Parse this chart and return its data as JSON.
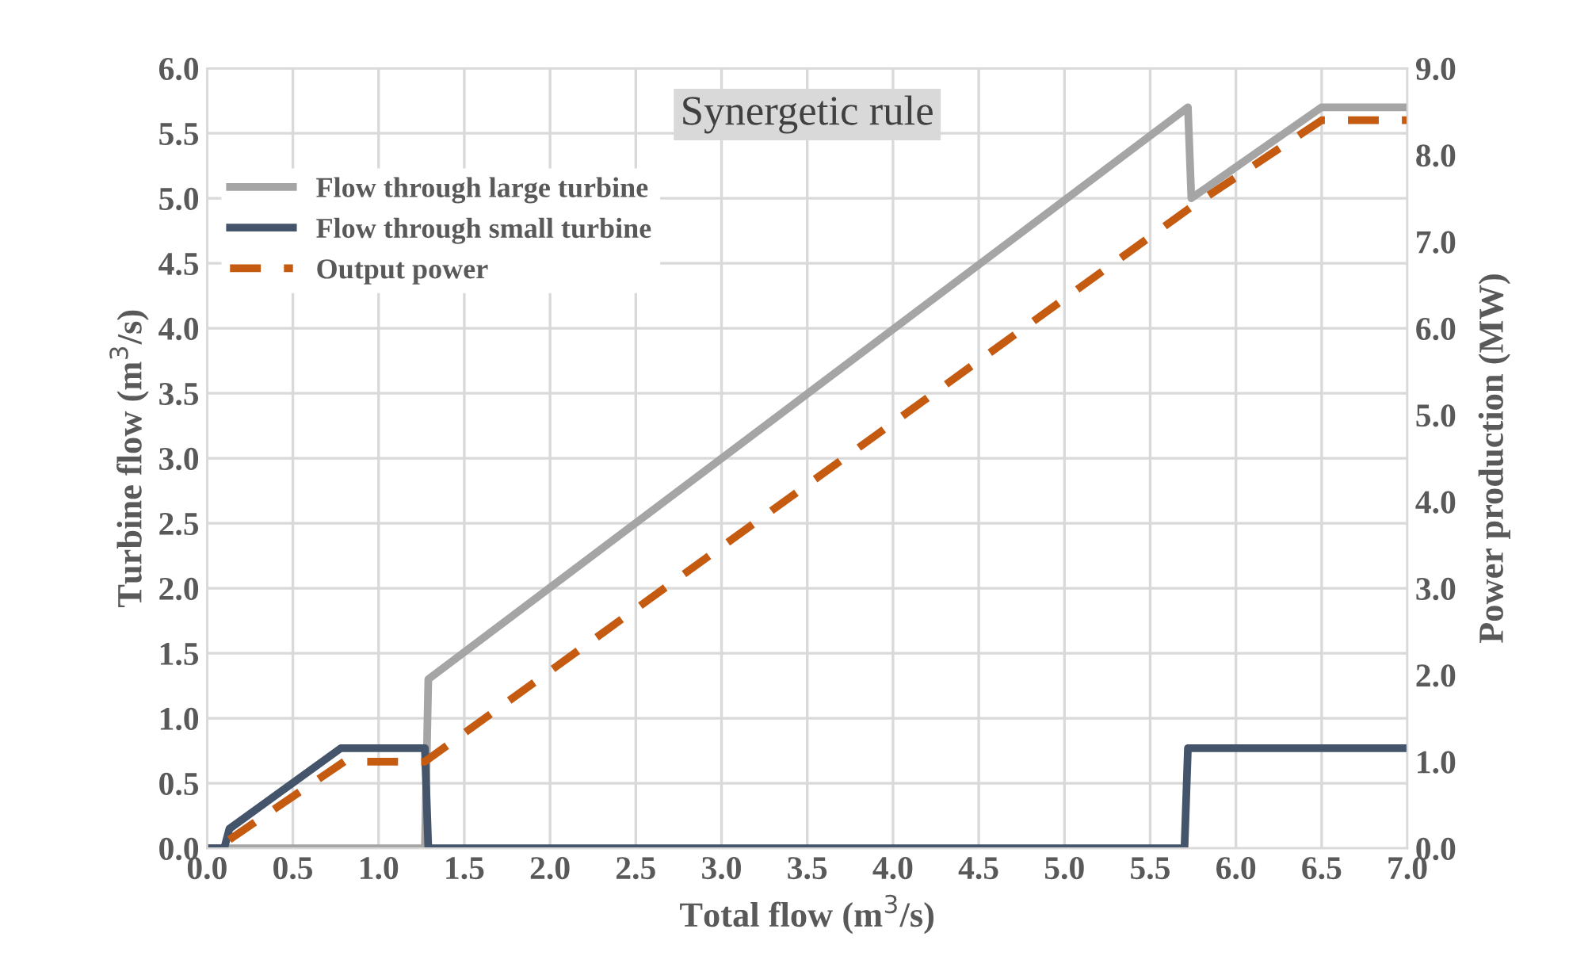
{
  "chart_data": {
    "type": "line",
    "title": "Synergetic rule",
    "xlabel": "Total flow (m$^{3}$/s)",
    "ylabel": "Turbine flow (m$^{3}$/s)",
    "y2label": "Power production (MW)",
    "xlim": [
      0,
      7
    ],
    "xticks": [
      {
        "value": 0,
        "label": "0.0"
      },
      {
        "value": 0.5,
        "label": "0.5"
      },
      {
        "value": 1,
        "label": "1.0"
      },
      {
        "value": 1.5,
        "label": "1.5"
      },
      {
        "value": 2,
        "label": "2.0"
      },
      {
        "value": 2.5,
        "label": "2.5"
      },
      {
        "value": 3,
        "label": "3.0"
      },
      {
        "value": 3.5,
        "label": "3.5"
      },
      {
        "value": 4,
        "label": "4.0"
      },
      {
        "value": 4.5,
        "label": "4.5"
      },
      {
        "value": 5,
        "label": "5.0"
      },
      {
        "value": 5.5,
        "label": "5.5"
      },
      {
        "value": 6,
        "label": "6.0"
      },
      {
        "value": 6.5,
        "label": "6.5"
      },
      {
        "value": 7,
        "label": "7.0"
      }
    ],
    "ylim": [
      0,
      6
    ],
    "yticks": [
      {
        "value": 0,
        "label": "0.0"
      },
      {
        "value": 0.5,
        "label": "0.5"
      },
      {
        "value": 1,
        "label": "1.0"
      },
      {
        "value": 1.5,
        "label": "1.5"
      },
      {
        "value": 2,
        "label": "2.0"
      },
      {
        "value": 2.5,
        "label": "2.5"
      },
      {
        "value": 3,
        "label": "3.0"
      },
      {
        "value": 3.5,
        "label": "3.5"
      },
      {
        "value": 4,
        "label": "4.0"
      },
      {
        "value": 4.5,
        "label": "4.5"
      },
      {
        "value": 5,
        "label": "5.0"
      },
      {
        "value": 5.5,
        "label": "5.5"
      },
      {
        "value": 6,
        "label": "6.0"
      }
    ],
    "y2lim": [
      0,
      9
    ],
    "y2ticks": [
      {
        "value": 0,
        "label": "0.0"
      },
      {
        "value": 1,
        "label": "1.0"
      },
      {
        "value": 2,
        "label": "2.0"
      },
      {
        "value": 3,
        "label": "3.0"
      },
      {
        "value": 4,
        "label": "4.0"
      },
      {
        "value": 5,
        "label": "5.0"
      },
      {
        "value": 6,
        "label": "6.0"
      },
      {
        "value": 7,
        "label": "7.0"
      },
      {
        "value": 8,
        "label": "8.0"
      },
      {
        "value": 9,
        "label": "9.0"
      }
    ],
    "grid": true,
    "legend": "top left",
    "marker": "none",
    "series": [
      {
        "name": "Flow through large turbine",
        "color": "#a5a5a5",
        "line_style": "solid",
        "x": [
          0,
          1.27,
          1.29,
          5.72,
          5.74,
          6.5,
          7.0
        ],
        "values": [
          0,
          0,
          1.3,
          5.7,
          5.0,
          5.7,
          5.7
        ]
      },
      {
        "name": "Flow through small turbine",
        "color": "#44546a",
        "line_style": "solid",
        "x": [
          0,
          0.1,
          0.13,
          0.78,
          1.27,
          1.29,
          5.7,
          5.72,
          7.0
        ],
        "values": [
          0,
          0,
          0.15,
          0.77,
          0.77,
          0,
          0,
          0.77,
          0.77
        ]
      },
      {
        "name": "Output power",
        "color": "#c55a11",
        "line_style": "dashed",
        "axis": "y2",
        "x": [
          0.13,
          0.8,
          1.27,
          5.74,
          6.5,
          7.0
        ],
        "values": [
          0.1,
          1.0,
          1.0,
          7.4,
          8.4,
          8.4
        ]
      }
    ]
  }
}
